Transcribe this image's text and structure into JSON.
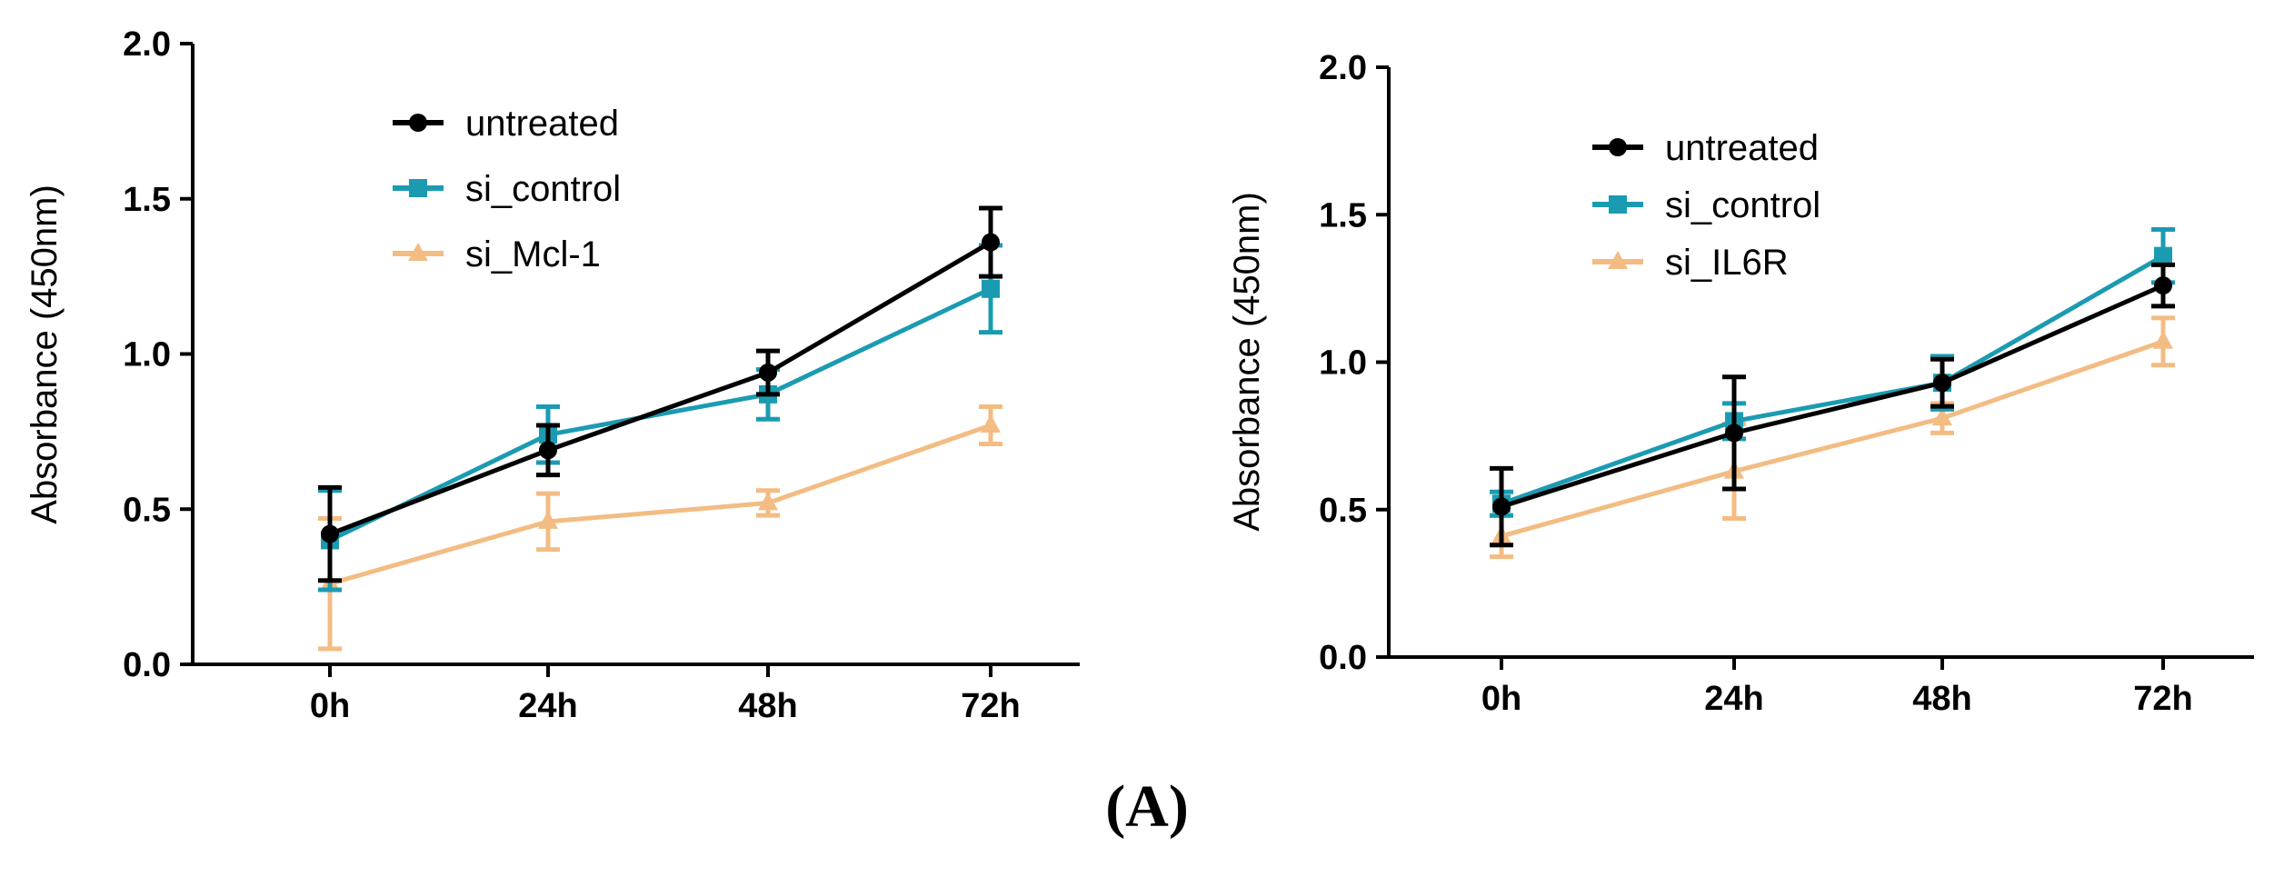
{
  "chart_data": [
    {
      "type": "line",
      "title": "",
      "xlabel": "",
      "ylabel": "Absorbance (450nm)",
      "categories": [
        "0h",
        "24h",
        "48h",
        "72h"
      ],
      "ylim": [
        0,
        2.0
      ],
      "yticks": [
        "0.0",
        "0.5",
        "1.0",
        "1.5",
        "2.0"
      ],
      "grid": false,
      "legend_position": "top-left",
      "series": [
        {
          "name": "untreated",
          "marker": "circle",
          "color": "#000000",
          "values": [
            0.42,
            0.69,
            0.94,
            1.36
          ],
          "errors": [
            0.15,
            0.08,
            0.07,
            0.11
          ]
        },
        {
          "name": "si_control",
          "marker": "square",
          "color": "#1B9BB2",
          "values": [
            0.4,
            0.74,
            0.87,
            1.21
          ],
          "errors": [
            0.16,
            0.09,
            0.08,
            0.14
          ]
        },
        {
          "name": "si_Mcl-1",
          "marker": "triangle",
          "color": "#F3BC83",
          "values": [
            0.26,
            0.46,
            0.52,
            0.77
          ],
          "errors": [
            0.21,
            0.09,
            0.04,
            0.06
          ]
        }
      ]
    },
    {
      "type": "line",
      "title": "",
      "xlabel": "",
      "ylabel": "Absorbance (450nm)",
      "categories": [
        "0h",
        "24h",
        "48h",
        "72h"
      ],
      "ylim": [
        0,
        2.0
      ],
      "yticks": [
        "0.0",
        "0.5",
        "1.0",
        "1.5",
        "2.0"
      ],
      "grid": false,
      "legend_position": "top-left",
      "series": [
        {
          "name": "untreated",
          "marker": "circle",
          "color": "#000000",
          "values": [
            0.51,
            0.76,
            0.93,
            1.26
          ],
          "errors": [
            0.13,
            0.19,
            0.08,
            0.07
          ]
        },
        {
          "name": "si_control",
          "marker": "square",
          "color": "#1B9BB2",
          "values": [
            0.52,
            0.8,
            0.93,
            1.36
          ],
          "errors": [
            0.04,
            0.06,
            0.09,
            0.09
          ]
        },
        {
          "name": "si_IL6R",
          "marker": "triangle",
          "color": "#F3BC83",
          "values": [
            0.41,
            0.63,
            0.81,
            1.07
          ],
          "errors": [
            0.07,
            0.16,
            0.05,
            0.08
          ]
        }
      ]
    }
  ],
  "caption": "(A)"
}
